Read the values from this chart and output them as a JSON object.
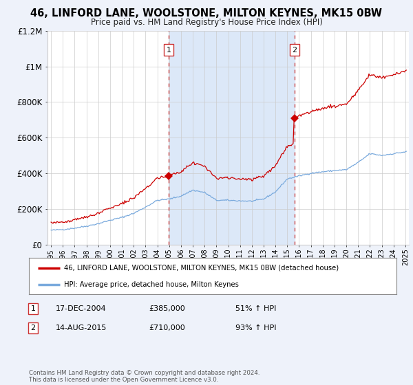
{
  "title": "46, LINFORD LANE, WOOLSTONE, MILTON KEYNES, MK15 0BW",
  "subtitle": "Price paid vs. HM Land Registry's House Price Index (HPI)",
  "background_color": "#eef2fa",
  "plot_bg_color": "#ffffff",
  "ylim": [
    0,
    1200000
  ],
  "yticks": [
    0,
    200000,
    400000,
    600000,
    800000,
    1000000,
    1200000
  ],
  "ytick_labels": [
    "£0",
    "£200K",
    "£400K",
    "£600K",
    "£800K",
    "£1M",
    "£1.2M"
  ],
  "red_line_color": "#cc0000",
  "blue_line_color": "#7aaadd",
  "marker1_year": 2004.95,
  "marker1_value": 385000,
  "marker2_year": 2015.62,
  "marker2_value": 710000,
  "vline_color": "#cc3333",
  "vshade_color": "#dce8f8",
  "legend_label_red": "46, LINFORD LANE, WOOLSTONE, MILTON KEYNES, MK15 0BW (detached house)",
  "legend_label_blue": "HPI: Average price, detached house, Milton Keynes",
  "table_entries": [
    {
      "num": "1",
      "date": "17-DEC-2004",
      "price": "£385,000",
      "hpi": "51% ↑ HPI"
    },
    {
      "num": "2",
      "date": "14-AUG-2015",
      "price": "£710,000",
      "hpi": "93% ↑ HPI"
    }
  ],
  "footnote": "Contains HM Land Registry data © Crown copyright and database right 2024.\nThis data is licensed under the Open Government Licence v3.0."
}
